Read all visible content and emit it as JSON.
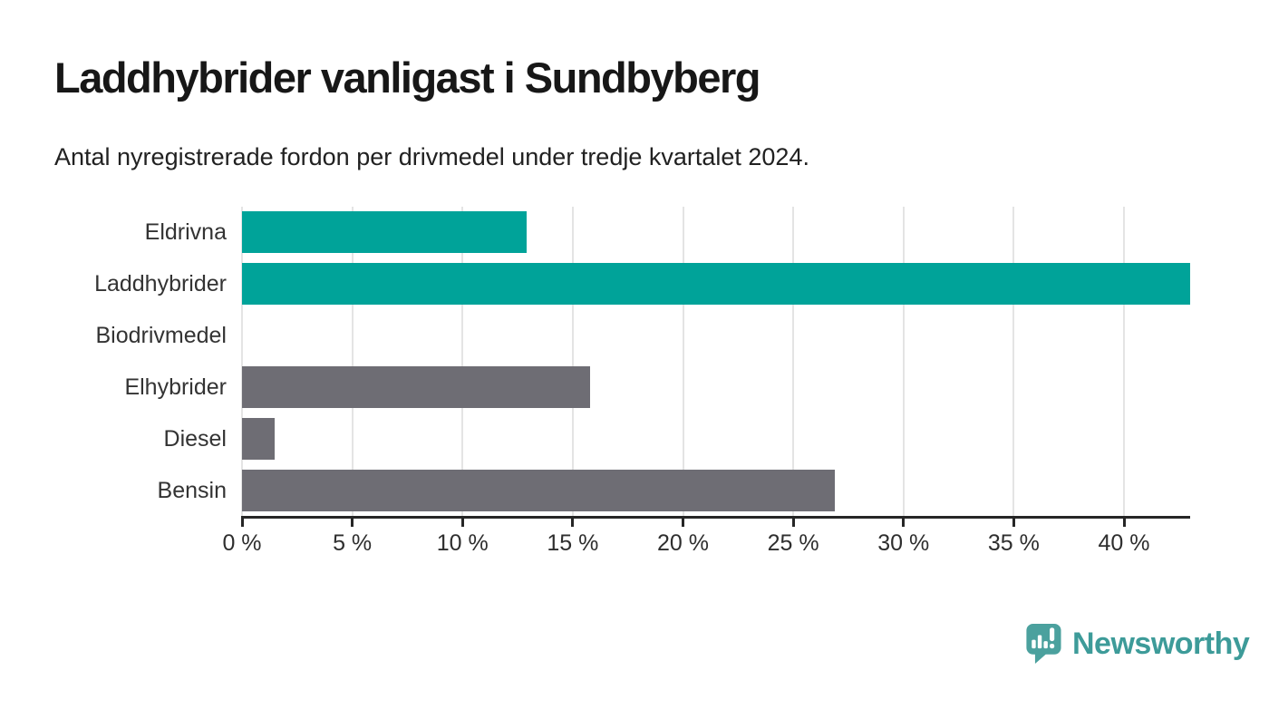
{
  "title": "Laddhybrider vanligast i Sundbyberg",
  "subtitle": "Antal nyregistrerade fordon per drivmedel under tredje kvartalet 2024.",
  "branding": {
    "name": "Newsworthy",
    "icon": "newsworthy-pin-barchart-icon",
    "icon_color": "#4ba19e",
    "wordmark_color": "#3d9b99"
  },
  "colors": {
    "highlight_teal": "#00a399",
    "neutral_gray": "#6e6d74",
    "axis": "#262626",
    "gridline": "#e4e4e4",
    "category_label": "#333333",
    "tick_label": "#2e2e2e",
    "title_text": "#171717",
    "background": "#ffffff"
  },
  "chart_data": {
    "type": "bar",
    "orientation": "horizontal",
    "title": "Laddhybrider vanligast i Sundbyberg",
    "subtitle": "Antal nyregistrerade fordon per drivmedel under tredje kvartalet 2024.",
    "categories": [
      "Eldrivna",
      "Laddhybrider",
      "Biodrivmedel",
      "Elhybrider",
      "Diesel",
      "Bensin"
    ],
    "values": [
      12.9,
      43,
      0,
      15.8,
      1.5,
      26.9
    ],
    "unit": "%",
    "bar_colors": [
      "#00a399",
      "#00a399",
      "#6e6d74",
      "#6e6d74",
      "#6e6d74",
      "#6e6d74"
    ],
    "x_ticks": [
      "0 %",
      "5 %",
      "10 %",
      "15 %",
      "20 %",
      "25 %",
      "30 %",
      "35 %",
      "40 %"
    ],
    "x_tick_values": [
      0,
      5,
      10,
      15,
      20,
      25,
      30,
      35,
      40
    ],
    "xlim": [
      0,
      43
    ],
    "xlabel": "",
    "ylabel": "",
    "grid": "vertical",
    "legend": "none"
  }
}
